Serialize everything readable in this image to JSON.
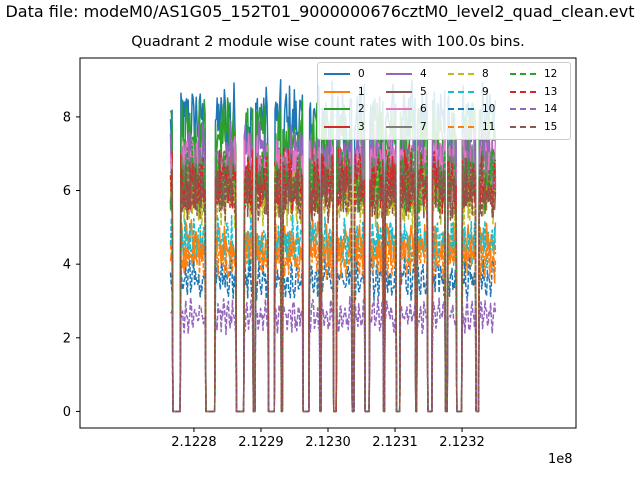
{
  "suptitle": "Data file: modeM0/AS1G05_152T01_9000000676cztM0_level2_quad_clean.evt",
  "chart_data": {
    "type": "line",
    "title": "Quadrant 2 module wise count rates with 100.0s bins.",
    "xlabel": "",
    "ylabel": "",
    "x_offset_label": "1e8",
    "xlim": [
      2.12263,
      2.12337
    ],
    "ylim": [
      -0.45,
      9.6
    ],
    "x_ticks": [
      2.1228,
      2.1229,
      2.123,
      2.1231,
      2.1232
    ],
    "x_tick_labels": [
      "2.1228",
      "2.1229",
      "2.1230",
      "2.1231",
      "2.1232"
    ],
    "y_ticks": [
      0,
      2,
      4,
      6,
      8
    ],
    "y_tick_labels": [
      "0",
      "2",
      "4",
      "6",
      "8"
    ],
    "legend_position": "top-right",
    "legend_columns": 4,
    "x_range": [
      2.122765,
      2.12325
    ],
    "active_windows": [
      [
        2.122765,
        2.122768
      ],
      [
        2.12278,
        2.122817
      ],
      [
        2.122832,
        2.122863
      ],
      [
        2.122875,
        2.122888
      ],
      [
        2.122891,
        2.122911
      ],
      [
        2.12292,
        2.12293
      ],
      [
        2.122932,
        2.122962
      ],
      [
        2.122972,
        2.122988
      ],
      [
        2.12299,
        2.123008
      ],
      [
        2.123013,
        2.123036
      ],
      [
        2.123039,
        2.123055
      ],
      [
        2.123062,
        2.123082
      ],
      [
        2.123085,
        2.123102
      ],
      [
        2.123108,
        2.12313
      ],
      [
        2.123133,
        2.123148
      ],
      [
        2.123155,
        2.123175
      ],
      [
        2.123178,
        2.123192
      ],
      [
        2.1232,
        2.12322
      ],
      [
        2.123225,
        2.12325
      ]
    ],
    "series": [
      {
        "name": "0",
        "color": "#1f77b4",
        "dash": "solid",
        "level": 7.9
      },
      {
        "name": "1",
        "color": "#ff7f0e",
        "dash": "solid",
        "level": 4.5
      },
      {
        "name": "2",
        "color": "#2ca02c",
        "dash": "solid",
        "level": 7.5
      },
      {
        "name": "3",
        "color": "#d62728",
        "dash": "solid",
        "level": 6.4
      },
      {
        "name": "4",
        "color": "#9467bd",
        "dash": "solid",
        "level": 6.9
      },
      {
        "name": "5",
        "color": "#8c564b",
        "dash": "solid",
        "level": 6.1
      },
      {
        "name": "6",
        "color": "#e377c2",
        "dash": "solid",
        "level": 6.6
      },
      {
        "name": "7",
        "color": "#7f7f7f",
        "dash": "solid",
        "level": 6.3
      },
      {
        "name": "8",
        "color": "#bcbd22",
        "dash": "dashed",
        "level": 5.8
      },
      {
        "name": "9",
        "color": "#17becf",
        "dash": "dashed",
        "level": 4.6
      },
      {
        "name": "10",
        "color": "#1f77b4",
        "dash": "dashed",
        "level": 3.6
      },
      {
        "name": "11",
        "color": "#ff7f0e",
        "dash": "dashed",
        "level": 4.2
      },
      {
        "name": "12",
        "color": "#2ca02c",
        "dash": "dashed",
        "level": 6.3
      },
      {
        "name": "13",
        "color": "#d62728",
        "dash": "dashed",
        "level": 6.2
      },
      {
        "name": "14",
        "color": "#9467bd",
        "dash": "dashed",
        "level": 2.6
      },
      {
        "name": "15",
        "color": "#8c564b",
        "dash": "dashed",
        "level": 6.0
      }
    ]
  }
}
